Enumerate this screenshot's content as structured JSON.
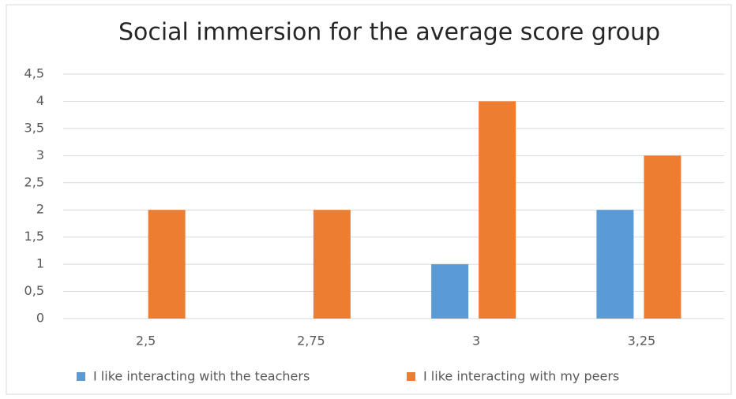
{
  "chart_data": {
    "type": "bar",
    "title": "Social immersion for the average score group",
    "categories": [
      "2,5",
      "2,75",
      "3",
      "3,25"
    ],
    "series": [
      {
        "name": "I like interacting with the teachers",
        "color": "#5b9bd5",
        "values": [
          0,
          0,
          1,
          2
        ]
      },
      {
        "name": "I like interacting with my peers",
        "color": "#ed7d31",
        "values": [
          2,
          2,
          4,
          3
        ]
      }
    ],
    "ylim": [
      0,
      4.5
    ],
    "yticks": [
      0,
      {
        "value": 0.5,
        "label": "0,5"
      },
      1,
      {
        "value": 1.5,
        "label": "1,5"
      },
      2,
      {
        "value": 2.5,
        "label": "2,5"
      },
      3,
      {
        "value": 3.5,
        "label": "3,5"
      },
      4,
      {
        "value": 4.5,
        "label": "4,5"
      }
    ],
    "grid": true,
    "legend": "bottom"
  }
}
